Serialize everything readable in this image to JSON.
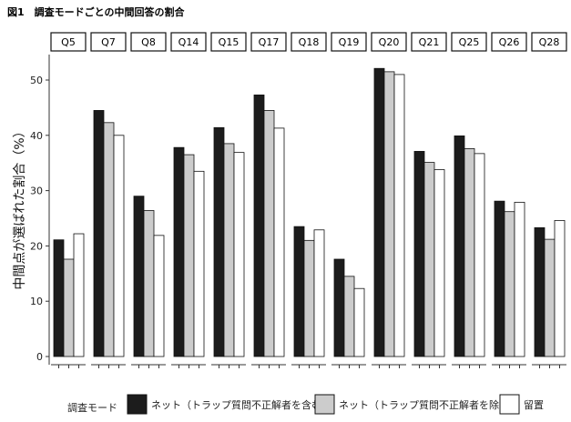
{
  "chart_data": {
    "type": "bar",
    "title": "図1　調査モードごとの中間回答の割合",
    "ylabel": "中間点が選ばれた割合（%）",
    "xlabel": "",
    "ylim": [
      0,
      55
    ],
    "yticks": [
      0,
      10,
      20,
      30,
      40,
      50
    ],
    "grid": false,
    "legend_position": "bottom",
    "legend_title": "調査モード",
    "categories": [
      "Q5",
      "Q7",
      "Q8",
      "Q14",
      "Q15",
      "Q17",
      "Q18",
      "Q19",
      "Q20",
      "Q21",
      "Q25",
      "Q26",
      "Q28"
    ],
    "series": [
      {
        "name": "ネット（トラップ質問不正解者を含む）",
        "color": "#1c1c1c",
        "values": [
          21.1,
          44.5,
          29.0,
          37.8,
          41.4,
          47.3,
          23.5,
          17.6,
          52.1,
          37.1,
          39.9,
          28.1,
          23.3
        ]
      },
      {
        "name": "ネット（トラップ質問不正解者を除く）",
        "color": "#cccccc",
        "values": [
          17.6,
          42.3,
          26.4,
          36.5,
          38.5,
          44.5,
          21.0,
          14.5,
          51.5,
          35.1,
          37.6,
          26.2,
          21.2
        ]
      },
      {
        "name": "留置",
        "color": "#ffffff",
        "values": [
          22.2,
          40.0,
          21.9,
          33.5,
          36.9,
          41.3,
          22.9,
          12.3,
          51.0,
          33.8,
          36.7,
          27.9,
          24.6
        ]
      }
    ]
  }
}
